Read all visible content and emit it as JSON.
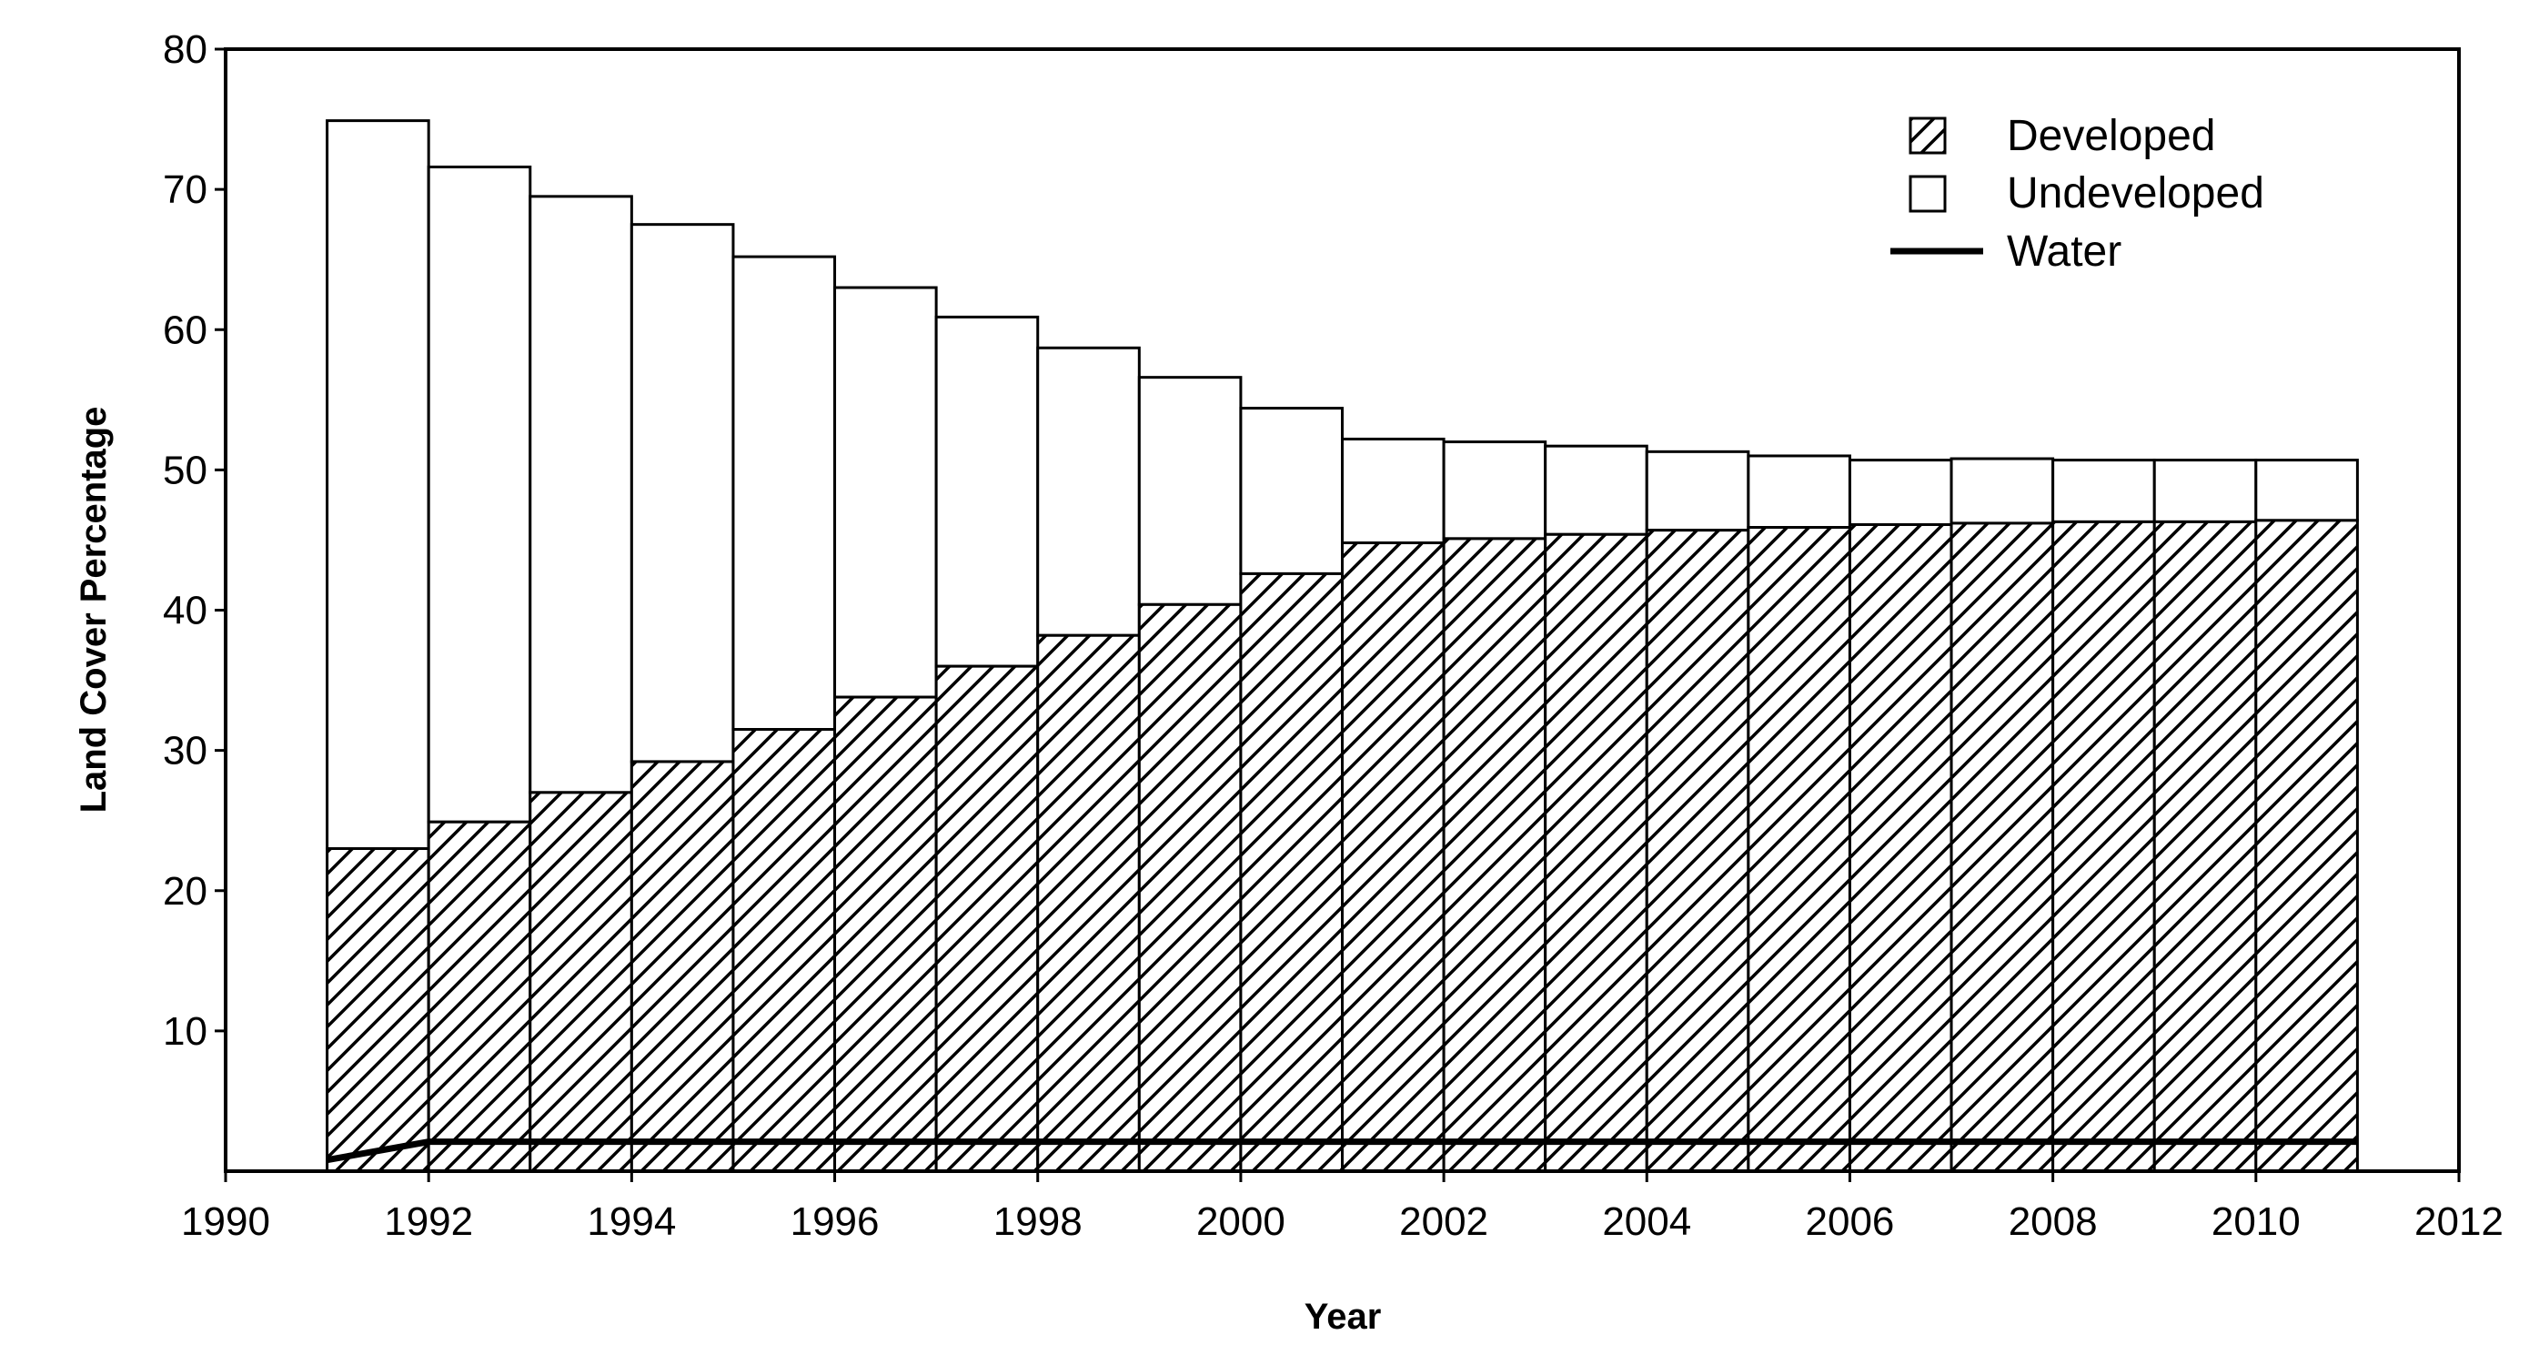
{
  "chart_data": {
    "type": "bar",
    "stacked": true,
    "x": [
      1991,
      1992,
      1993,
      1994,
      1995,
      1996,
      1997,
      1998,
      1999,
      2000,
      2001,
      2002,
      2003,
      2004,
      2005,
      2006,
      2007,
      2008,
      2009,
      2010
    ],
    "series": [
      {
        "name": "Developed",
        "fill": "hatched",
        "values": [
          23.0,
          24.9,
          27.0,
          29.2,
          31.5,
          33.8,
          36.0,
          38.2,
          40.4,
          42.6,
          44.8,
          45.1,
          45.4,
          45.7,
          45.9,
          46.1,
          46.2,
          46.3,
          46.3,
          46.4
        ]
      },
      {
        "name": "Undeveloped",
        "fill": "white",
        "values": [
          51.9,
          46.7,
          42.5,
          38.3,
          33.7,
          29.2,
          24.9,
          20.5,
          16.2,
          11.8,
          7.4,
          6.9,
          6.3,
          5.6,
          5.1,
          4.6,
          4.6,
          4.4,
          4.4,
          4.3
        ]
      },
      {
        "name": "Water",
        "type": "line",
        "x": [
          1991,
          1992,
          2011
        ],
        "values": [
          0.8,
          2.1,
          2.1
        ]
      }
    ],
    "xlabel": "Year",
    "ylabel": "Land Cover Percentage",
    "xlim": [
      1990,
      2012
    ],
    "ylim": [
      0,
      80
    ],
    "xticks": [
      1990,
      1992,
      1994,
      1996,
      1998,
      2000,
      2002,
      2004,
      2006,
      2008,
      2010,
      2012
    ],
    "yticks": [
      10,
      20,
      30,
      40,
      50,
      60,
      70,
      80
    ],
    "grid": false,
    "legend": "top-right",
    "colors": {
      "stroke": "#000000",
      "background": "#ffffff"
    }
  }
}
